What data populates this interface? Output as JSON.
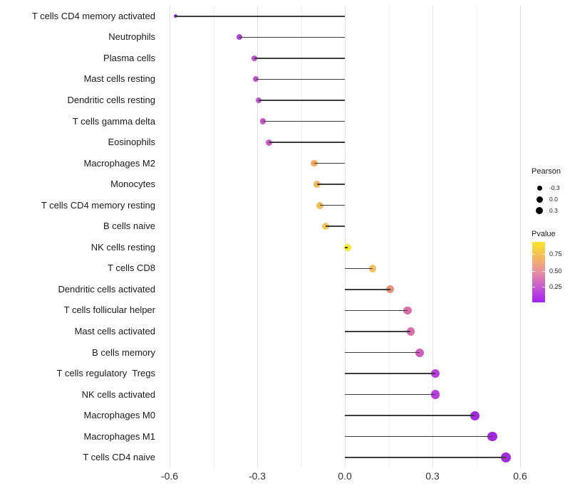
{
  "chart_data": {
    "type": "lollipop",
    "title": "",
    "xlabel": "",
    "ylabel": "",
    "xlim": [
      -0.64,
      0.62
    ],
    "grid_step": 0.15,
    "grid": "vertical-only",
    "x_ticks": [
      {
        "label": "-0.6",
        "value": -0.6
      },
      {
        "label": "-0.3",
        "value": -0.3
      },
      {
        "label": "0.0",
        "value": 0.0
      },
      {
        "label": "0.3",
        "value": 0.3
      },
      {
        "label": "0.6",
        "value": 0.6
      }
    ],
    "points": [
      {
        "label": "T cells CD4 memory activated",
        "pearson": -0.58,
        "pvalue": 0.09,
        "color": "#9023D9",
        "size": 5
      },
      {
        "label": "Neutrophils",
        "pearson": -0.36,
        "pvalue": 0.17,
        "color": "#A748CC",
        "size": 8
      },
      {
        "label": "Plasma cells",
        "pearson": -0.31,
        "pvalue": 0.21,
        "color": "#BC53CB",
        "size": 8
      },
      {
        "label": "Mast cells resting",
        "pearson": -0.305,
        "pvalue": 0.21,
        "color": "#BD53CB",
        "size": 8
      },
      {
        "label": "Dendritic cells resting",
        "pearson": -0.295,
        "pvalue": 0.22,
        "color": "#C156CA",
        "size": 8
      },
      {
        "label": "T cells gamma delta",
        "pearson": -0.28,
        "pvalue": 0.23,
        "color": "#C358C8",
        "size": 8.5
      },
      {
        "label": "Eosinophils",
        "pearson": -0.26,
        "pvalue": 0.25,
        "color": "#C85DC5",
        "size": 9
      },
      {
        "label": "Macrophages M2",
        "pearson": -0.105,
        "pvalue": 0.68,
        "color": "#F0A95F",
        "size": 9.5
      },
      {
        "label": "Monocytes",
        "pearson": -0.095,
        "pvalue": 0.72,
        "color": "#F1B960",
        "size": 10
      },
      {
        "label": "T cells CD4 memory resting",
        "pearson": -0.085,
        "pvalue": 0.73,
        "color": "#F1BB62",
        "size": 10
      },
      {
        "label": "B cells naive",
        "pearson": -0.065,
        "pvalue": 0.79,
        "color": "#F3C75E",
        "size": 10
      },
      {
        "label": "NK cells resting",
        "pearson": 0.01,
        "pvalue": 0.95,
        "color": "#F5E72A",
        "size": 10
      },
      {
        "label": "T cells CD8",
        "pearson": 0.095,
        "pvalue": 0.76,
        "color": "#F2C163",
        "size": 10.5
      },
      {
        "label": "Dendritic cells activated",
        "pearson": 0.155,
        "pvalue": 0.52,
        "color": "#E8917E",
        "size": 11
      },
      {
        "label": "T cells follicular helper",
        "pearson": 0.215,
        "pvalue": 0.36,
        "color": "#D870A6",
        "size": 11.5
      },
      {
        "label": "Mast cells activated",
        "pearson": 0.225,
        "pvalue": 0.35,
        "color": "#D66FAC",
        "size": 11.5
      },
      {
        "label": "B cells memory",
        "pearson": 0.255,
        "pvalue": 0.28,
        "color": "#CB5FBE",
        "size": 12
      },
      {
        "label": "T cells regulatory  Tregs",
        "pearson": 0.31,
        "pvalue": 0.13,
        "color": "#B83EDC",
        "size": 12.5
      },
      {
        "label": "NK cells activated",
        "pearson": 0.31,
        "pvalue": 0.13,
        "color": "#B83EDC",
        "size": 12.5
      },
      {
        "label": "Macrophages M0",
        "pearson": 0.445,
        "pvalue": 0.06,
        "color": "#A52BDE",
        "size": 13
      },
      {
        "label": "Macrophages M1",
        "pearson": 0.505,
        "pvalue": 0.04,
        "color": "#A129DC",
        "size": 13.5
      },
      {
        "label": "T cells CD4 naive",
        "pearson": 0.55,
        "pvalue": 0.03,
        "color": "#A32CD9",
        "size": 14
      }
    ],
    "legend_size": {
      "title": "Pearson",
      "entries": [
        {
          "label": "-0.3",
          "size": 7
        },
        {
          "label": "0.0",
          "size": 9
        },
        {
          "label": "0.3",
          "size": 10.5
        }
      ],
      "dot_color": "#000000"
    },
    "legend_color": {
      "title": "Pvalue",
      "ticks": [
        "0.75",
        "0.50",
        "0.25"
      ],
      "gradient": [
        "#F8E629",
        "#F4B85E",
        "#E78FA4",
        "#C757D2",
        "#A122EE"
      ]
    }
  }
}
